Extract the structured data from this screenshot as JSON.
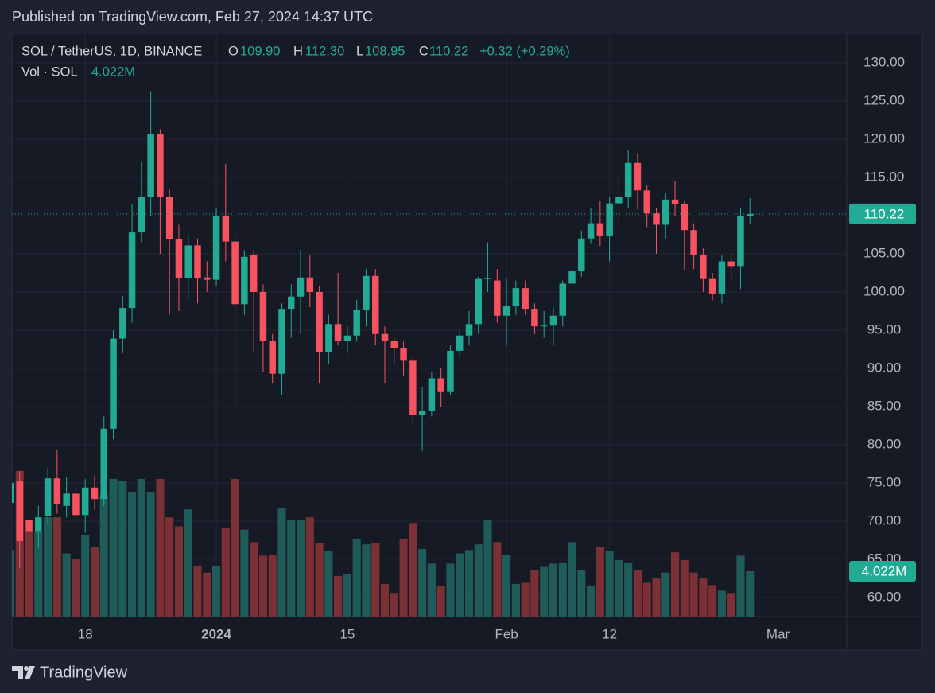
{
  "chart_data": {
    "type": "candlestick",
    "published": "Published on TradingView.com, Feb 27, 2024 14:37 UTC",
    "symbol": "SOL / TetherUS, 1D, BINANCE",
    "ohlc_legend": [
      {
        "label": "O",
        "value": "109.90"
      },
      {
        "label": "H",
        "value": "112.30"
      },
      {
        "label": "L",
        "value": "108.95"
      },
      {
        "label": "C",
        "value": "110.22"
      }
    ],
    "change": "+0.32 (+0.29%)",
    "volume_legend": {
      "name": "Vol · SOL",
      "value": "4.022M"
    },
    "footer": "TradingView",
    "up_color": "#22ab94",
    "down_color": "#f7525f",
    "volume_up_color": "#1f5c59",
    "volume_down_color": "#7b3035",
    "grid": true,
    "x": [
      "2023-12-10",
      "2023-12-11",
      "2023-12-12",
      "2023-12-13",
      "2023-12-14",
      "2023-12-15",
      "2023-12-16",
      "2023-12-17",
      "2023-12-18",
      "2023-12-19",
      "2023-12-20",
      "2023-12-21",
      "2023-12-22",
      "2023-12-23",
      "2023-12-24",
      "2023-12-25",
      "2023-12-26",
      "2023-12-27",
      "2023-12-28",
      "2023-12-29",
      "2023-12-30",
      "2023-12-31",
      "2024-01-01",
      "2024-01-02",
      "2024-01-03",
      "2024-01-04",
      "2024-01-05",
      "2024-01-06",
      "2024-01-07",
      "2024-01-08",
      "2024-01-09",
      "2024-01-10",
      "2024-01-11",
      "2024-01-12",
      "2024-01-13",
      "2024-01-14",
      "2024-01-15",
      "2024-01-16",
      "2024-01-17",
      "2024-01-18",
      "2024-01-19",
      "2024-01-20",
      "2024-01-21",
      "2024-01-22",
      "2024-01-23",
      "2024-01-24",
      "2024-01-25",
      "2024-01-26",
      "2024-01-27",
      "2024-01-28",
      "2024-01-29",
      "2024-01-30",
      "2024-01-31",
      "2024-02-01",
      "2024-02-02",
      "2024-02-03",
      "2024-02-04",
      "2024-02-05",
      "2024-02-06",
      "2024-02-07",
      "2024-02-08",
      "2024-02-09",
      "2024-02-10",
      "2024-02-11",
      "2024-02-12",
      "2024-02-13",
      "2024-02-14",
      "2024-02-15",
      "2024-02-16",
      "2024-02-17",
      "2024-02-18",
      "2024-02-19",
      "2024-02-20",
      "2024-02-21",
      "2024-02-22",
      "2024-02-23",
      "2024-02-24",
      "2024-02-25",
      "2024-02-26",
      "2024-02-27"
    ],
    "open": [
      72.4,
      75.2,
      70.2,
      68.6,
      70.7,
      75.6,
      72.0,
      73.6,
      70.8,
      74.4,
      72.9,
      82.1,
      93.9,
      97.9,
      107.8,
      112.4,
      120.7,
      112.4,
      106.9,
      101.8,
      106.1,
      101.9,
      101.6,
      110.0,
      106.6,
      98.4,
      104.9,
      100.0,
      93.6,
      89.3,
      97.8,
      99.4,
      101.9,
      100.0,
      92.1,
      95.8,
      93.6,
      94.3,
      97.6,
      102.1,
      94.5,
      93.6,
      92.7,
      91.0,
      83.9,
      84.4,
      88.7,
      86.9,
      92.3,
      94.3,
      95.8,
      101.7,
      101.5,
      96.9,
      98.2,
      100.5,
      97.8,
      95.5,
      95.6,
      96.9,
      101.1,
      102.7,
      107.0,
      109.0,
      107.4,
      111.6,
      112.4,
      116.9,
      113.3,
      110.3,
      108.8,
      112.1,
      111.5,
      108.1,
      104.9,
      101.7,
      99.8,
      104.0,
      103.4,
      109.9
    ],
    "high": [
      75.5,
      76.6,
      71.5,
      72.0,
      77.0,
      79.4,
      75.8,
      74.5,
      75.5,
      76.0,
      83.7,
      95.0,
      99.5,
      111.5,
      117.0,
      126.2,
      121.3,
      113.5,
      108.8,
      107.6,
      107.0,
      104.0,
      111.0,
      116.8,
      108.0,
      105.5,
      105.5,
      101.0,
      94.5,
      98.5,
      101.0,
      105.5,
      104.8,
      100.8,
      97.0,
      102.5,
      95.5,
      99.0,
      103.0,
      103.0,
      95.5,
      94.0,
      93.5,
      91.5,
      87.5,
      89.6,
      90.0,
      93.0,
      95.0,
      97.5,
      102.0,
      106.5,
      103.0,
      101.7,
      101.5,
      101.5,
      98.5,
      97.5,
      98.0,
      101.5,
      104.2,
      108.0,
      111.0,
      112.0,
      112.5,
      115.0,
      118.6,
      118.2,
      114.0,
      111.0,
      113.0,
      114.6,
      112.0,
      109.0,
      105.7,
      102.5,
      104.8,
      105.0,
      111.0,
      112.3
    ],
    "low": [
      72.0,
      63.8,
      67.0,
      66.5,
      69.5,
      71.0,
      70.5,
      70.0,
      68.5,
      71.5,
      72.0,
      80.7,
      92.0,
      96.0,
      106.5,
      110.0,
      105.0,
      97.0,
      97.5,
      99.0,
      98.5,
      100.0,
      100.8,
      104.0,
      85.0,
      97.0,
      92.0,
      89.5,
      88.0,
      86.5,
      94.0,
      94.5,
      98.0,
      88.0,
      90.5,
      93.0,
      92.0,
      93.5,
      95.5,
      93.0,
      88.0,
      90.5,
      89.0,
      82.5,
      79.2,
      83.7,
      85.0,
      86.5,
      91.5,
      93.0,
      94.5,
      100.0,
      96.0,
      93.0,
      97.0,
      97.0,
      94.5,
      94.0,
      93.0,
      95.5,
      101.0,
      102.0,
      106.3,
      106.0,
      104.0,
      108.5,
      111.0,
      110.8,
      108.5,
      105.0,
      107.0,
      110.0,
      102.9,
      103.0,
      100.0,
      98.9,
      98.5,
      101.7,
      100.4,
      108.95
    ],
    "close": [
      75.0,
      67.4,
      68.6,
      70.5,
      75.6,
      72.3,
      73.6,
      70.8,
      74.4,
      72.9,
      82.1,
      93.9,
      97.9,
      107.8,
      112.4,
      120.7,
      112.4,
      106.9,
      101.8,
      106.1,
      101.8,
      101.6,
      110.0,
      106.6,
      98.4,
      104.6,
      100.0,
      93.6,
      89.3,
      97.8,
      99.4,
      101.9,
      100.0,
      92.1,
      95.8,
      93.6,
      94.3,
      97.6,
      102.1,
      94.5,
      93.6,
      92.7,
      91.0,
      83.9,
      84.4,
      88.7,
      86.9,
      92.3,
      94.3,
      95.8,
      101.7,
      101.8,
      96.9,
      98.2,
      100.5,
      97.8,
      95.5,
      95.6,
      96.9,
      101.1,
      102.7,
      107.0,
      109.0,
      107.4,
      111.6,
      112.4,
      116.9,
      113.3,
      110.3,
      108.8,
      112.1,
      111.5,
      108.1,
      104.9,
      101.7,
      99.8,
      104.0,
      103.4,
      109.9,
      110.22
    ],
    "volume": [
      5.9,
      12.9,
      7.6,
      7.6,
      8.8,
      8.8,
      5.6,
      5.1,
      7.2,
      6.2,
      10.8,
      12.2,
      12.0,
      11.0,
      12.2,
      11.0,
      12.2,
      8.8,
      8.0,
      9.5,
      4.5,
      3.9,
      4.5,
      7.9,
      12.2,
      7.7,
      6.6,
      5.4,
      5.5,
      9.6,
      8.6,
      8.6,
      8.8,
      6.5,
      5.8,
      3.6,
      3.8,
      6.9,
      6.4,
      6.5,
      2.9,
      2.1,
      6.9,
      8.3,
      6.0,
      4.7,
      2.7,
      4.7,
      5.6,
      5.9,
      6.4,
      8.6,
      6.6,
      5.5,
      2.9,
      3.0,
      4.1,
      4.4,
      4.7,
      4.8,
      6.6,
      4.1,
      2.7,
      6.2,
      5.8,
      5.0,
      4.8,
      4.1,
      3.0,
      3.4,
      3.9,
      5.7,
      5.0,
      3.9,
      3.4,
      2.8,
      2.3,
      2.1,
      5.4,
      4.022
    ],
    "xlim": [
      "2023-12-10",
      "2024-03-08"
    ],
    "xticks": [
      {
        "value": "2023-12-18",
        "label": "18"
      },
      {
        "value": "2024-01-01",
        "label": "2024"
      },
      {
        "value": "2024-01-15",
        "label": "15"
      },
      {
        "value": "2024-02-01",
        "label": "Feb"
      },
      {
        "value": "2024-02-12",
        "label": "12"
      },
      {
        "value": "2024-03-01",
        "label": "Mar"
      }
    ],
    "ylim": [
      57.5,
      133.85
    ],
    "yticks": [
      {
        "value": 60,
        "label": "60.00"
      },
      {
        "value": 65,
        "label": "65.00"
      },
      {
        "value": 70,
        "label": "70.00"
      },
      {
        "value": 75,
        "label": "75.00"
      },
      {
        "value": 80,
        "label": "80.00"
      },
      {
        "value": 85,
        "label": "85.00"
      },
      {
        "value": 90,
        "label": "90.00"
      },
      {
        "value": 95,
        "label": "95.00"
      },
      {
        "value": 100,
        "label": "100.00"
      },
      {
        "value": 105,
        "label": "105.00"
      },
      {
        "value": 110,
        "label": "110.00"
      },
      {
        "value": 115,
        "label": "115.00"
      },
      {
        "value": 120,
        "label": "120.00"
      },
      {
        "value": 125,
        "label": "125.00"
      },
      {
        "value": 130,
        "label": "130.00"
      }
    ]
  }
}
